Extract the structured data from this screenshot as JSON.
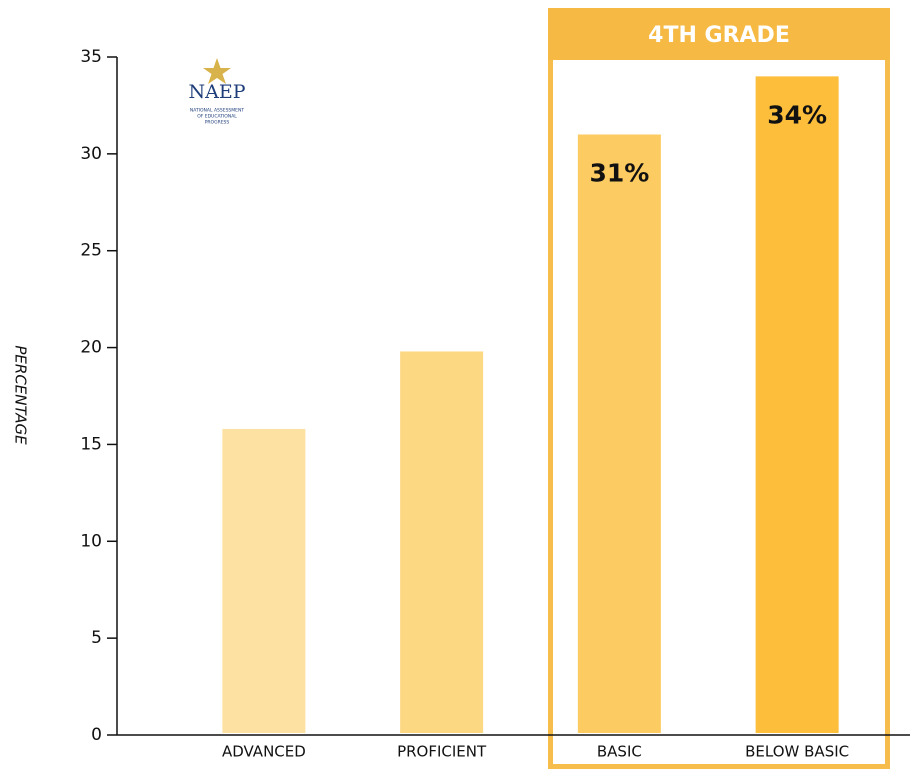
{
  "chart_data": {
    "type": "bar",
    "y_label": "PERCENTAGE",
    "highlight_label": "4TH GRADE",
    "categories": [
      "ADVANCED",
      "PROFICIENT",
      "BASIC",
      "BELOW BASIC"
    ],
    "values": [
      15.8,
      19.8,
      31,
      34
    ],
    "value_labels": [
      null,
      null,
      "31%",
      "34%"
    ],
    "colors": [
      "#fde1a2",
      "#fcd883",
      "#fccb62",
      "#fcbe3b"
    ],
    "ylim": [
      0,
      35
    ],
    "yticks": [
      0,
      5,
      10,
      15,
      20,
      25,
      30,
      35
    ],
    "grid": false
  },
  "logo": {
    "title": "NAEP",
    "lines": [
      "NATIONAL ASSESSMENT",
      "OF EDUCATIONAL",
      "PROGRESS"
    ]
  }
}
